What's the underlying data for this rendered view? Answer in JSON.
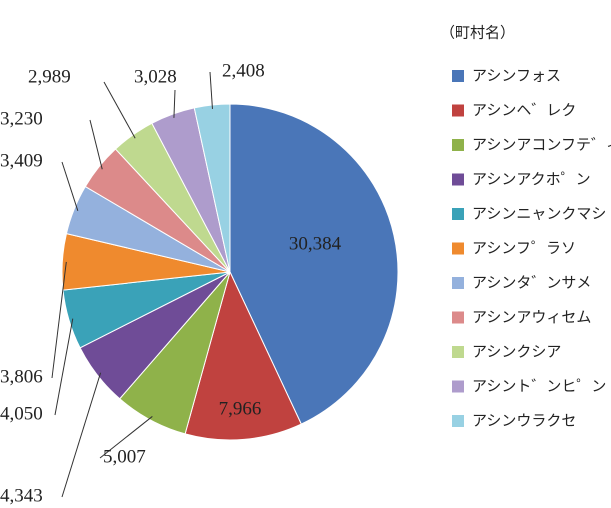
{
  "chart_data": {
    "type": "pie",
    "legend_title": "（町村名）",
    "categories": [
      "アシンフォス",
      "アシンヘ゛レク",
      "アシンアコンフテ゛ィ",
      "アシンアクホ゜ン",
      "アシンニャンクマシ",
      "アシンフ゜ラソ",
      "アシンタ゛ンサメ",
      "アシンアウィセム",
      "アシンクシア",
      "アシント゛ンヒ゜ン",
      "アシンウラクセ"
    ],
    "values": [
      30384,
      7966,
      5007,
      4343,
      4050,
      3806,
      3409,
      3230,
      2989,
      3028,
      2408
    ],
    "value_labels": [
      "30,384",
      "7,966",
      "5,007",
      "4,343",
      "4,050",
      "3,806",
      "3,409",
      "3,230",
      "2,989",
      "3,028",
      "2,408"
    ],
    "colors": [
      "#4a76b8",
      "#c0423f",
      "#8fb24a",
      "#6f4c97",
      "#3aa2b8",
      "#ef8a2e",
      "#94b1dd",
      "#dc8a8a",
      "#bfd98f",
      "#ae9ccc",
      "#98d1e3"
    ],
    "legend": "right"
  }
}
